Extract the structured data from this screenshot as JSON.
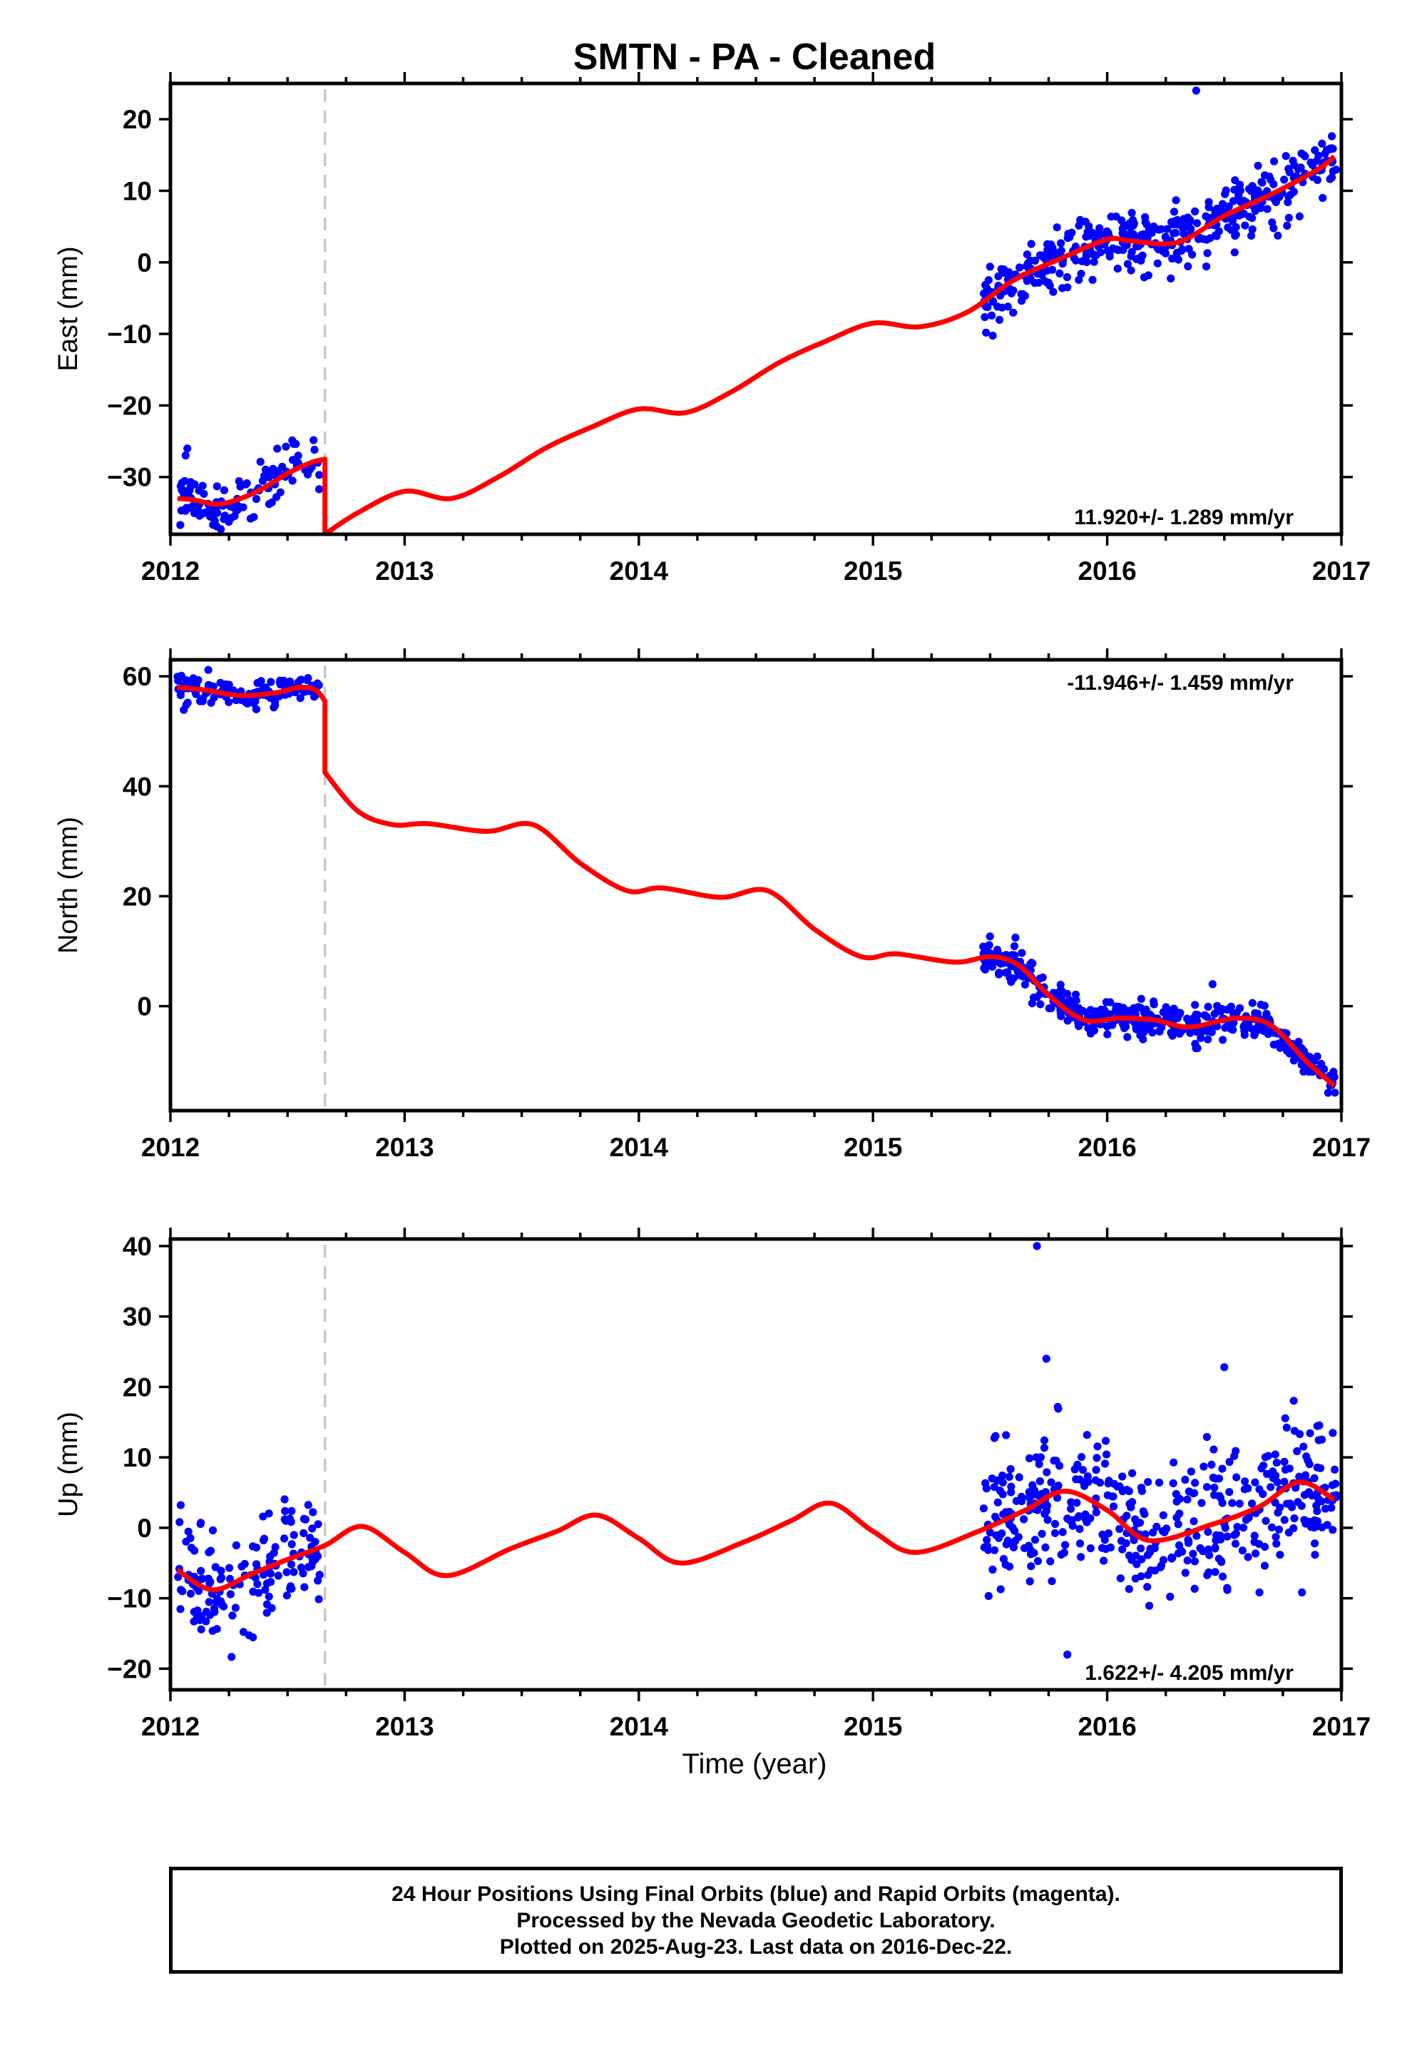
{
  "title": "SMTN  - PA - Cleaned",
  "xlabel": "Time (year)",
  "footer": {
    "line1": "24 Hour Positions Using Final Orbits (blue) and Rapid Orbits (magenta).",
    "line2": "Processed by the Nevada Geodetic Laboratory.",
    "line3": "Plotted on 2025-Aug-23. Last data on 2016-Dec-22."
  },
  "colors": {
    "data": "#0000ff",
    "model": "#ff0000",
    "break": "#c8c8c8",
    "axis": "#000000"
  },
  "chart_data": [
    {
      "type": "scatter",
      "component": "East",
      "ylabel": "East (mm)",
      "rate": "11.920+/- 1.289 mm/yr",
      "xlim": [
        2012,
        2017
      ],
      "ylim": [
        -38,
        25
      ],
      "xticks": [
        2012,
        2013,
        2014,
        2015,
        2016,
        2017
      ],
      "yticks": [
        -30,
        -20,
        -10,
        0,
        10,
        20
      ],
      "step_epoch": 2012.66,
      "model": {
        "x": [
          2012.03,
          2012.1,
          2012.2,
          2012.3,
          2012.4,
          2012.5,
          2012.6,
          2012.66,
          2012.66,
          2012.8,
          2013.0,
          2013.2,
          2013.4,
          2013.6,
          2013.8,
          2014.0,
          2014.2,
          2014.4,
          2014.6,
          2014.8,
          2015.0,
          2015.2,
          2015.4,
          2015.6,
          2015.8,
          2016.0,
          2016.1,
          2016.3,
          2016.5,
          2016.7,
          2016.9,
          2016.97
        ],
        "y": [
          -33.0,
          -33.2,
          -33.8,
          -33.0,
          -31.5,
          -29.5,
          -28.0,
          -27.5,
          -38.0,
          -35.0,
          -32.0,
          -33.0,
          -30.0,
          -26.0,
          -23.0,
          -20.5,
          -21.0,
          -18.0,
          -14.0,
          -11.0,
          -8.5,
          -9.0,
          -7.0,
          -2.5,
          0.5,
          3.2,
          3.0,
          2.8,
          6.5,
          9.5,
          13.0,
          14.8
        ]
      },
      "clusters": [
        {
          "t0": 2012.03,
          "t1": 2012.64,
          "n": 120,
          "spread": 2.0,
          "seed": 11
        },
        {
          "t0": 2015.47,
          "t1": 2016.98,
          "n": 420,
          "spread": 2.2,
          "seed": 12
        }
      ],
      "outliers": [
        {
          "x": 2016.38,
          "y": 24.0
        }
      ]
    },
    {
      "type": "scatter",
      "component": "North",
      "ylabel": "North (mm)",
      "rate": "-11.946+/- 1.459 mm/yr",
      "xlim": [
        2012,
        2017
      ],
      "ylim": [
        -19,
        63
      ],
      "xticks": [
        2012,
        2013,
        2014,
        2015,
        2016,
        2017
      ],
      "yticks": [
        0,
        20,
        40,
        60
      ],
      "step_epoch": 2012.66,
      "model": {
        "x": [
          2012.03,
          2012.15,
          2012.3,
          2012.45,
          2012.55,
          2012.62,
          2012.66,
          2012.66,
          2012.8,
          2012.95,
          2013.1,
          2013.35,
          2013.55,
          2013.75,
          2013.95,
          2014.1,
          2014.35,
          2014.55,
          2014.75,
          2014.95,
          2015.1,
          2015.35,
          2015.5,
          2015.62,
          2015.75,
          2015.9,
          2016.05,
          2016.2,
          2016.35,
          2016.55,
          2016.7,
          2016.85,
          2016.97
        ],
        "y": [
          58.0,
          57.5,
          56.5,
          57.0,
          58.0,
          57.5,
          55.5,
          42.5,
          35.5,
          33.0,
          33.2,
          31.8,
          33.0,
          26.0,
          21.0,
          21.5,
          19.8,
          21.0,
          14.0,
          9.0,
          9.5,
          8.0,
          9.0,
          7.5,
          2.0,
          -2.5,
          -2.2,
          -2.5,
          -3.8,
          -2.2,
          -3.5,
          -10.0,
          -14.5
        ]
      },
      "clusters": [
        {
          "t0": 2012.03,
          "t1": 2012.64,
          "n": 130,
          "spread": 1.3,
          "seed": 21
        },
        {
          "t0": 2015.47,
          "t1": 2016.98,
          "n": 430,
          "spread": 1.5,
          "seed": 22
        }
      ],
      "outliers": [
        {
          "x": 2016.45,
          "y": 4.0
        }
      ]
    },
    {
      "type": "scatter",
      "component": "Up",
      "ylabel": "Up (mm)",
      "rate": "1.622+/- 4.205 mm/yr",
      "xlim": [
        2012,
        2017
      ],
      "ylim": [
        -23,
        41
      ],
      "xticks": [
        2012,
        2013,
        2014,
        2015,
        2016,
        2017
      ],
      "yticks": [
        -20,
        -10,
        0,
        10,
        20,
        30,
        40
      ],
      "step_epoch": 2012.66,
      "model": {
        "x": [
          2012.03,
          2012.18,
          2012.35,
          2012.5,
          2012.66,
          2012.82,
          2013.0,
          2013.18,
          2013.45,
          2013.65,
          2013.82,
          2014.0,
          2014.18,
          2014.45,
          2014.65,
          2014.82,
          2015.0,
          2015.18,
          2015.45,
          2015.65,
          2015.82,
          2016.0,
          2016.18,
          2016.45,
          2016.65,
          2016.82,
          2016.97
        ],
        "y": [
          -6.0,
          -8.8,
          -6.5,
          -4.5,
          -2.5,
          0.2,
          -3.5,
          -6.8,
          -3.0,
          -0.5,
          1.8,
          -1.5,
          -5.0,
          -2.0,
          1.0,
          3.5,
          -0.5,
          -3.5,
          -0.5,
          2.5,
          5.2,
          2.5,
          -1.8,
          0.5,
          3.0,
          6.5,
          4.0
        ]
      },
      "clusters": [
        {
          "t0": 2012.03,
          "t1": 2012.64,
          "n": 150,
          "spread": 4.0,
          "seed": 31
        },
        {
          "t0": 2015.47,
          "t1": 2016.98,
          "n": 440,
          "spread": 5.2,
          "seed": 32
        }
      ],
      "outliers": [
        {
          "x": 2015.7,
          "y": 40.0
        },
        {
          "x": 2016.5,
          "y": 22.8
        },
        {
          "x": 2015.83,
          "y": -18.0
        },
        {
          "x": 2015.74,
          "y": 24.0
        }
      ]
    }
  ]
}
